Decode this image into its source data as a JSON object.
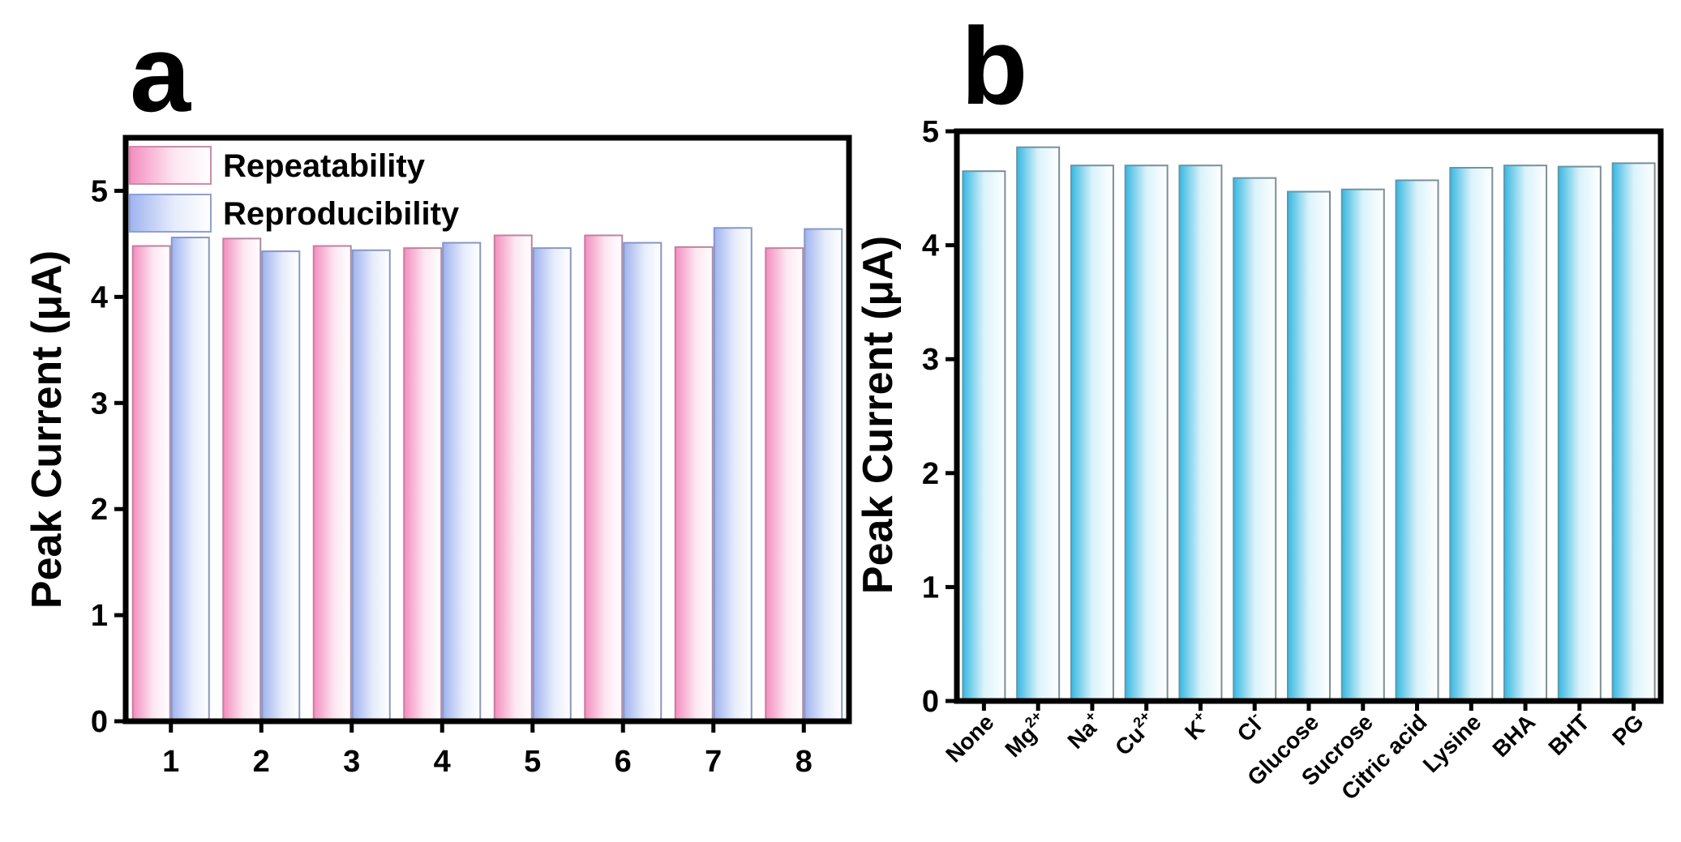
{
  "chart_data": [
    {
      "type": "bar",
      "panel": "a",
      "ylabel": "Peak Current (μA)",
      "xlabel": "",
      "categories": [
        "1",
        "2",
        "3",
        "4",
        "5",
        "6",
        "7",
        "8"
      ],
      "ylim": [
        0,
        5.5
      ],
      "yticks": [
        "0",
        "1",
        "2",
        "3",
        "4",
        "5"
      ],
      "series": [
        {
          "name": "Repeatability",
          "values": [
            4.48,
            4.55,
            4.48,
            4.46,
            4.58,
            4.58,
            4.47,
            4.46
          ]
        },
        {
          "name": "Reproducibility",
          "values": [
            4.56,
            4.43,
            4.44,
            4.51,
            4.46,
            4.51,
            4.65,
            4.64
          ]
        }
      ],
      "legend_position": "top-left",
      "colors": {
        "Repeatability": "#f7b3d2",
        "Reproducibility": "#b9c8f4"
      }
    },
    {
      "type": "bar",
      "panel": "b",
      "ylabel": "Peak Current (μA)",
      "xlabel": "",
      "categories": [
        {
          "base": "None",
          "sup": ""
        },
        {
          "base": "Mg",
          "sup": "2+"
        },
        {
          "base": "Na",
          "sup": "+"
        },
        {
          "base": "Cu",
          "sup": "2+"
        },
        {
          "base": "K",
          "sup": "+"
        },
        {
          "base": "Cl",
          "sup": "-"
        },
        {
          "base": "Glucose",
          "sup": ""
        },
        {
          "base": "Sucrose",
          "sup": ""
        },
        {
          "base": "Citric acid",
          "sup": ""
        },
        {
          "base": "Lysine",
          "sup": ""
        },
        {
          "base": "BHA",
          "sup": ""
        },
        {
          "base": "BHT",
          "sup": ""
        },
        {
          "base": "PG",
          "sup": ""
        }
      ],
      "ylim": [
        0,
        5
      ],
      "yticks": [
        "0",
        "1",
        "2",
        "3",
        "4",
        "5"
      ],
      "values": [
        4.65,
        4.86,
        4.7,
        4.7,
        4.7,
        4.59,
        4.47,
        4.49,
        4.57,
        4.68,
        4.7,
        4.69,
        4.72
      ],
      "colors": {
        "bar": "#7fd6ee"
      }
    }
  ]
}
